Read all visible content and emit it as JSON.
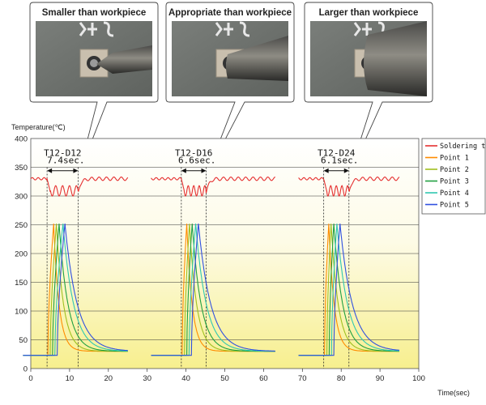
{
  "callouts": [
    {
      "title": "Smaller than workpiece",
      "tip": "small"
    },
    {
      "title": "Appropriate than workpiece",
      "tip": "medium"
    },
    {
      "title": "Larger than workpiece",
      "tip": "large"
    }
  ],
  "chart_data": {
    "type": "line",
    "title": "",
    "xlabel": "Time(sec)",
    "ylabel": "Temperature(℃)",
    "xlim": [
      0,
      100
    ],
    "ylim": [
      0,
      400
    ],
    "xticks": [
      0,
      10,
      20,
      30,
      40,
      50,
      60,
      70,
      80,
      90,
      100
    ],
    "yticks": [
      0,
      50,
      100,
      150,
      200,
      250,
      300,
      350,
      400
    ],
    "grid": "horizontal",
    "background": "gradient white-to-yellow",
    "legend": {
      "position": "right",
      "entries": [
        {
          "name": "Soldering tip",
          "color": "#e53030"
        },
        {
          "name": "Point 1",
          "color": "#ff8c00"
        },
        {
          "name": "Point 2",
          "color": "#a0c020"
        },
        {
          "name": "Point 3",
          "color": "#20a040"
        },
        {
          "name": "Point 4",
          "color": "#30c8b0"
        },
        {
          "name": "Point 5",
          "color": "#3050e0"
        }
      ]
    },
    "groups": [
      {
        "label": "T12-D12",
        "duration_label": "7.4sec.",
        "start": 4.2,
        "end": 12.2,
        "tip_start": 0,
        "tip_end": 25,
        "point_offset": -2,
        "tip_level": 330,
        "dip_level": 300,
        "heating_times": [
          1.5,
          1.6,
          1.7,
          2.1,
          2.0
        ]
      },
      {
        "label": "T12-D16",
        "duration_label": "6.6sec.",
        "start": 38.8,
        "end": 45.2,
        "tip_start": 31,
        "tip_end": 63,
        "point_offset": 31,
        "tip_level": 330,
        "dip_level": 300,
        "heating_times": [
          1.2,
          1.3,
          1.4,
          1.7,
          1.8
        ]
      },
      {
        "label": "T12-D24",
        "duration_label": "6.1sec.",
        "start": 75.5,
        "end": 82.0,
        "tip_start": 69,
        "tip_end": 95,
        "point_offset": 69,
        "tip_level": 330,
        "dip_level": 300,
        "heating_times": [
          1.1,
          1.1,
          1.2,
          1.4,
          1.6
        ]
      }
    ]
  }
}
